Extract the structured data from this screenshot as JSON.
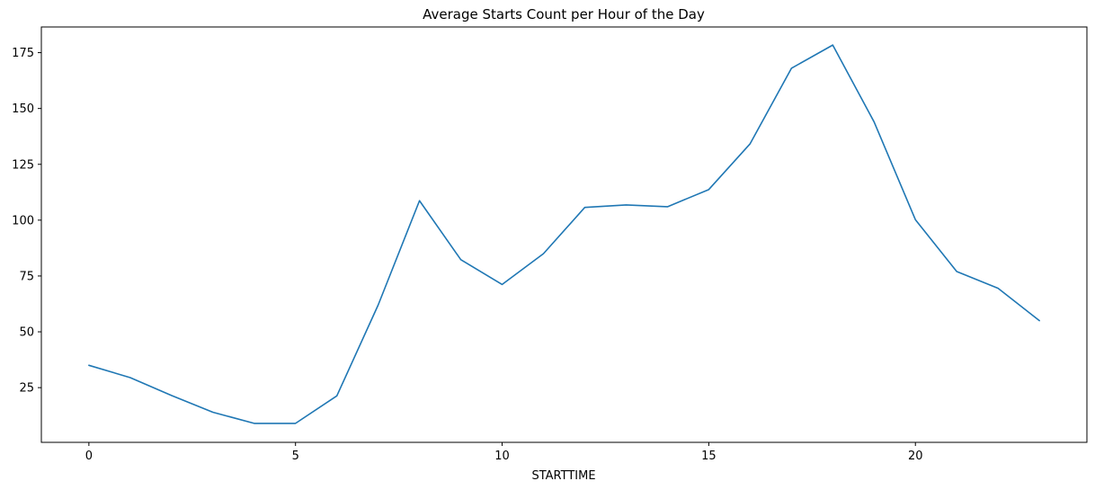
{
  "chart_data": {
    "type": "line",
    "title": "Average Starts Count per Hour of the Day",
    "xlabel": "STARTTIME",
    "ylabel": "",
    "x": [
      0,
      1,
      2,
      3,
      4,
      5,
      6,
      7,
      8,
      9,
      10,
      11,
      12,
      13,
      14,
      15,
      16,
      17,
      18,
      19,
      20,
      21,
      22,
      23
    ],
    "series": [
      {
        "color": "#1f77b4",
        "values": [
          35,
          29.5,
          21.5,
          14,
          9,
          9,
          21.3,
          62,
          108.7,
          82.3,
          71.2,
          85,
          105.7,
          106.8,
          106,
          113.7,
          134.2,
          168,
          178.4,
          144,
          100.2,
          77,
          69.5,
          55
        ]
      }
    ],
    "xticks": [
      0,
      5,
      10,
      15,
      20
    ],
    "yticks": [
      25,
      50,
      75,
      100,
      125,
      150,
      175
    ],
    "xlim": [
      -1.15,
      24.15
    ],
    "ylim": [
      0.5,
      186.5
    ],
    "grid": false,
    "legend": "none"
  }
}
